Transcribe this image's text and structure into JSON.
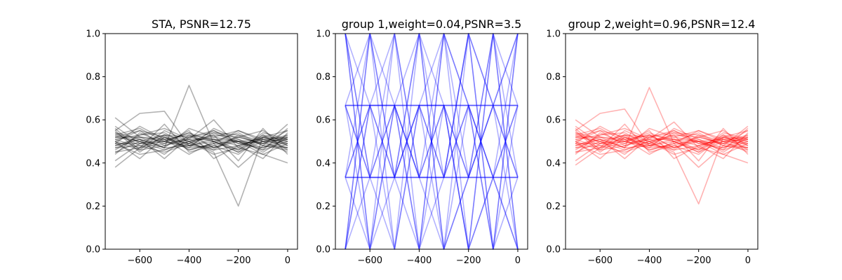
{
  "chart_data": [
    {
      "type": "line",
      "title": "STA, PSNR=12.75",
      "color": "#000000",
      "opacity": 0.3,
      "xlim": [
        -740,
        40
      ],
      "ylim": [
        0,
        1
      ],
      "xticks": [
        -600,
        -400,
        -200,
        0
      ],
      "xtick_labels": [
        "−600",
        "−400",
        "−200",
        "0"
      ],
      "yticks": [
        0,
        0.2,
        0.4,
        0.6,
        0.8,
        1.0
      ],
      "ytick_labels": [
        "0.0",
        "0.2",
        "0.4",
        "0.6",
        "0.8",
        "1.0"
      ],
      "x": [
        -700,
        -600,
        -500,
        -400,
        -300,
        -200,
        -100,
        0
      ],
      "series": [
        {
          "values": [
            0.61,
            0.52,
            0.5,
            0.54,
            0.47,
            0.5,
            0.49,
            0.52
          ]
        },
        {
          "values": [
            0.38,
            0.47,
            0.52,
            0.49,
            0.55,
            0.5,
            0.46,
            0.5
          ]
        },
        {
          "values": [
            0.55,
            0.63,
            0.64,
            0.48,
            0.51,
            0.46,
            0.52,
            0.49
          ]
        },
        {
          "values": [
            0.48,
            0.52,
            0.47,
            0.76,
            0.49,
            0.5,
            0.51,
            0.47
          ]
        },
        {
          "values": [
            0.5,
            0.46,
            0.55,
            0.5,
            0.45,
            0.2,
            0.52,
            0.51
          ]
        },
        {
          "values": [
            0.52,
            0.55,
            0.48,
            0.51,
            0.6,
            0.47,
            0.44,
            0.4
          ]
        },
        {
          "values": [
            0.45,
            0.5,
            0.53,
            0.46,
            0.49,
            0.38,
            0.48,
            0.58
          ]
        },
        {
          "values": [
            0.57,
            0.49,
            0.51,
            0.53,
            0.47,
            0.52,
            0.55,
            0.48
          ]
        },
        {
          "values": [
            0.49,
            0.44,
            0.46,
            0.5,
            0.52,
            0.55,
            0.5,
            0.53
          ]
        },
        {
          "values": [
            0.53,
            0.56,
            0.5,
            0.48,
            0.54,
            0.49,
            0.47,
            0.51
          ]
        },
        {
          "values": [
            0.47,
            0.51,
            0.42,
            0.52,
            0.5,
            0.45,
            0.53,
            0.46
          ]
        },
        {
          "values": [
            0.51,
            0.47,
            0.58,
            0.45,
            0.48,
            0.52,
            0.49,
            0.55
          ]
        },
        {
          "values": [
            0.44,
            0.54,
            0.49,
            0.55,
            0.42,
            0.48,
            0.51,
            0.5
          ]
        },
        {
          "values": [
            0.54,
            0.48,
            0.45,
            0.49,
            0.53,
            0.41,
            0.56,
            0.44
          ]
        },
        {
          "values": [
            0.5,
            0.42,
            0.52,
            0.47,
            0.56,
            0.51,
            0.45,
            0.52
          ]
        },
        {
          "values": [
            0.46,
            0.53,
            0.56,
            0.51,
            0.46,
            0.53,
            0.5,
            0.49
          ]
        },
        {
          "values": [
            0.52,
            0.5,
            0.44,
            0.53,
            0.51,
            0.48,
            0.42,
            0.54
          ]
        },
        {
          "values": [
            0.49,
            0.57,
            0.51,
            0.44,
            0.5,
            0.54,
            0.48,
            0.47
          ]
        },
        {
          "values": [
            0.55,
            0.45,
            0.53,
            0.5,
            0.44,
            0.47,
            0.53,
            0.5
          ]
        },
        {
          "values": [
            0.48,
            0.51,
            0.47,
            0.56,
            0.52,
            0.5,
            0.46,
            0.56
          ]
        },
        {
          "values": [
            0.41,
            0.49,
            0.5,
            0.47,
            0.48,
            0.44,
            0.52,
            0.48
          ]
        },
        {
          "values": [
            0.56,
            0.46,
            0.48,
            0.52,
            0.55,
            0.49,
            0.5,
            0.45
          ]
        },
        {
          "values": [
            0.51,
            0.53,
            0.54,
            0.48,
            0.47,
            0.51,
            0.47,
            0.53
          ]
        },
        {
          "values": [
            0.47,
            0.48,
            0.5,
            0.54,
            0.5,
            0.46,
            0.54,
            0.51
          ]
        },
        {
          "values": [
            0.53,
            0.5,
            0.46,
            0.5,
            0.53,
            0.52,
            0.49,
            0.47
          ]
        },
        {
          "values": [
            0.5,
            0.55,
            0.52,
            0.46,
            0.49,
            0.55,
            0.51,
            0.52
          ]
        },
        {
          "values": [
            0.45,
            0.47,
            0.49,
            0.51,
            0.51,
            0.5,
            0.44,
            0.49
          ]
        },
        {
          "values": [
            0.52,
            0.52,
            0.51,
            0.49,
            0.46,
            0.48,
            0.52,
            0.55
          ]
        },
        {
          "values": [
            0.49,
            0.49,
            0.53,
            0.52,
            0.54,
            0.53,
            0.48,
            0.46
          ]
        },
        {
          "values": [
            0.54,
            0.51,
            0.47,
            0.48,
            0.5,
            0.45,
            0.5,
            0.51
          ]
        }
      ]
    },
    {
      "type": "line",
      "title": "group 1,weight=0.04,PSNR=3.5",
      "color": "#0000ff",
      "opacity": 0.3,
      "xlim": [
        -740,
        40
      ],
      "ylim": [
        0,
        1
      ],
      "xticks": [
        -600,
        -400,
        -200,
        0
      ],
      "xtick_labels": [
        "−600",
        "−400",
        "−200",
        "0"
      ],
      "yticks": [
        0,
        0.2,
        0.4,
        0.6,
        0.8,
        1.0
      ],
      "ytick_labels": [
        "0.0",
        "0.2",
        "0.4",
        "0.6",
        "0.8",
        "1.0"
      ],
      "x": [
        -700,
        -600,
        -500,
        -400,
        -300,
        -200,
        -100,
        0
      ],
      "series": [
        {
          "values": [
            0.667,
            0.667,
            0.667,
            0.667,
            0.667,
            0.667,
            0.667,
            0.667
          ]
        },
        {
          "values": [
            0.667,
            0.667,
            0.667,
            0.667,
            0.667,
            0.667,
            0.667,
            0.667
          ]
        },
        {
          "values": [
            0.667,
            0.667,
            0.667,
            0.667,
            0.667,
            0.667,
            0.667,
            0.667
          ]
        },
        {
          "values": [
            0.333,
            0.333,
            0.333,
            0.333,
            0.333,
            0.333,
            0.333,
            0.333
          ]
        },
        {
          "values": [
            0.333,
            0.333,
            0.333,
            0.333,
            0.333,
            0.333,
            0.333,
            0.333
          ]
        },
        {
          "values": [
            0.333,
            0.333,
            0.333,
            0.333,
            0.333,
            0.333,
            0.333,
            0.333
          ]
        },
        {
          "values": [
            1.0,
            0.0,
            1.0,
            0.0,
            1.0,
            0.0,
            1.0,
            0.0
          ]
        },
        {
          "values": [
            0.0,
            1.0,
            0.0,
            1.0,
            0.0,
            1.0,
            0.0,
            1.0
          ]
        },
        {
          "values": [
            1.0,
            0.333,
            0.667,
            0.0,
            0.667,
            0.333,
            1.0,
            0.333
          ]
        },
        {
          "values": [
            0.0,
            0.667,
            0.333,
            1.0,
            0.333,
            0.667,
            0.0,
            0.667
          ]
        },
        {
          "values": [
            0.667,
            0.0,
            0.667,
            0.333,
            1.0,
            0.333,
            0.667,
            0.0
          ]
        },
        {
          "values": [
            0.333,
            1.0,
            0.333,
            0.667,
            0.0,
            0.667,
            0.333,
            1.0
          ]
        },
        {
          "values": [
            0.667,
            0.333,
            0.0,
            0.667,
            0.333,
            1.0,
            0.667,
            0.333
          ]
        },
        {
          "values": [
            0.333,
            0.667,
            1.0,
            0.333,
            0.667,
            0.0,
            0.333,
            0.667
          ]
        },
        {
          "values": [
            1.0,
            0.667,
            0.333,
            0.667,
            1.0,
            0.667,
            0.333,
            0.0
          ]
        },
        {
          "values": [
            0.0,
            0.333,
            0.667,
            0.333,
            0.0,
            0.333,
            0.667,
            1.0
          ]
        },
        {
          "values": [
            0.667,
            1.0,
            0.667,
            0.0,
            0.333,
            1.0,
            0.667,
            0.333
          ]
        },
        {
          "values": [
            0.333,
            0.0,
            0.333,
            1.0,
            0.667,
            0.0,
            0.333,
            0.667
          ]
        },
        {
          "values": [
            1.0,
            0.0,
            0.667,
            0.333,
            0.333,
            0.667,
            0.0,
            1.0
          ]
        },
        {
          "values": [
            0.0,
            1.0,
            0.333,
            0.667,
            0.667,
            0.333,
            1.0,
            0.0
          ]
        },
        {
          "values": [
            0.667,
            0.333,
            1.0,
            0.333,
            0.667,
            0.0,
            1.0,
            0.667
          ]
        },
        {
          "values": [
            0.333,
            0.667,
            0.0,
            0.667,
            0.333,
            1.0,
            0.0,
            0.333
          ]
        },
        {
          "values": [
            0.0,
            0.667,
            0.667,
            1.0,
            0.0,
            0.333,
            0.667,
            1.0
          ]
        },
        {
          "values": [
            1.0,
            0.333,
            0.333,
            0.0,
            1.0,
            0.667,
            0.333,
            0.0
          ]
        }
      ]
    },
    {
      "type": "line",
      "title": "group 2,weight=0.96,PSNR=12.4",
      "color": "#ff0000",
      "opacity": 0.3,
      "xlim": [
        -740,
        40
      ],
      "ylim": [
        0,
        1
      ],
      "xticks": [
        -600,
        -400,
        -200,
        0
      ],
      "xtick_labels": [
        "−600",
        "−400",
        "−200",
        "0"
      ],
      "yticks": [
        0,
        0.2,
        0.4,
        0.6,
        0.8,
        1.0
      ],
      "ytick_labels": [
        "0.0",
        "0.2",
        "0.4",
        "0.6",
        "0.8",
        "1.0"
      ],
      "x": [
        -700,
        -600,
        -500,
        -400,
        -300,
        -200,
        -100,
        0
      ],
      "series": [
        {
          "values": [
            0.6,
            0.52,
            0.5,
            0.53,
            0.47,
            0.5,
            0.49,
            0.52
          ]
        },
        {
          "values": [
            0.39,
            0.47,
            0.52,
            0.49,
            0.55,
            0.5,
            0.46,
            0.5
          ]
        },
        {
          "values": [
            0.55,
            0.63,
            0.65,
            0.48,
            0.51,
            0.46,
            0.52,
            0.49
          ]
        },
        {
          "values": [
            0.48,
            0.52,
            0.47,
            0.75,
            0.49,
            0.5,
            0.51,
            0.47
          ]
        },
        {
          "values": [
            0.5,
            0.46,
            0.55,
            0.5,
            0.45,
            0.21,
            0.52,
            0.51
          ]
        },
        {
          "values": [
            0.52,
            0.55,
            0.48,
            0.51,
            0.59,
            0.47,
            0.44,
            0.4
          ]
        },
        {
          "values": [
            0.45,
            0.5,
            0.53,
            0.46,
            0.49,
            0.38,
            0.48,
            0.57
          ]
        },
        {
          "values": [
            0.57,
            0.49,
            0.51,
            0.53,
            0.47,
            0.52,
            0.55,
            0.48
          ]
        },
        {
          "values": [
            0.49,
            0.44,
            0.46,
            0.5,
            0.52,
            0.55,
            0.5,
            0.53
          ]
        },
        {
          "values": [
            0.53,
            0.56,
            0.5,
            0.48,
            0.54,
            0.49,
            0.47,
            0.51
          ]
        },
        {
          "values": [
            0.47,
            0.51,
            0.42,
            0.52,
            0.5,
            0.45,
            0.53,
            0.46
          ]
        },
        {
          "values": [
            0.51,
            0.47,
            0.58,
            0.45,
            0.48,
            0.52,
            0.49,
            0.55
          ]
        },
        {
          "values": [
            0.44,
            0.54,
            0.49,
            0.55,
            0.42,
            0.48,
            0.51,
            0.5
          ]
        },
        {
          "values": [
            0.54,
            0.48,
            0.45,
            0.49,
            0.53,
            0.41,
            0.56,
            0.44
          ]
        },
        {
          "values": [
            0.5,
            0.42,
            0.52,
            0.47,
            0.56,
            0.51,
            0.45,
            0.52
          ]
        },
        {
          "values": [
            0.46,
            0.53,
            0.56,
            0.51,
            0.46,
            0.53,
            0.5,
            0.49
          ]
        },
        {
          "values": [
            0.52,
            0.5,
            0.44,
            0.53,
            0.51,
            0.48,
            0.42,
            0.54
          ]
        },
        {
          "values": [
            0.49,
            0.57,
            0.51,
            0.44,
            0.5,
            0.54,
            0.48,
            0.47
          ]
        },
        {
          "values": [
            0.55,
            0.45,
            0.53,
            0.5,
            0.44,
            0.47,
            0.53,
            0.5
          ]
        },
        {
          "values": [
            0.48,
            0.51,
            0.47,
            0.56,
            0.52,
            0.5,
            0.46,
            0.56
          ]
        },
        {
          "values": [
            0.41,
            0.49,
            0.5,
            0.47,
            0.48,
            0.44,
            0.52,
            0.48
          ]
        },
        {
          "values": [
            0.56,
            0.46,
            0.48,
            0.52,
            0.55,
            0.49,
            0.5,
            0.45
          ]
        },
        {
          "values": [
            0.51,
            0.53,
            0.54,
            0.48,
            0.47,
            0.51,
            0.47,
            0.53
          ]
        },
        {
          "values": [
            0.47,
            0.48,
            0.5,
            0.54,
            0.5,
            0.46,
            0.54,
            0.51
          ]
        },
        {
          "values": [
            0.53,
            0.5,
            0.46,
            0.5,
            0.53,
            0.52,
            0.49,
            0.47
          ]
        },
        {
          "values": [
            0.5,
            0.55,
            0.52,
            0.46,
            0.49,
            0.55,
            0.51,
            0.52
          ]
        },
        {
          "values": [
            0.45,
            0.47,
            0.49,
            0.51,
            0.51,
            0.5,
            0.44,
            0.49
          ]
        },
        {
          "values": [
            0.52,
            0.52,
            0.51,
            0.49,
            0.46,
            0.48,
            0.52,
            0.55
          ]
        },
        {
          "values": [
            0.49,
            0.49,
            0.53,
            0.52,
            0.54,
            0.53,
            0.48,
            0.46
          ]
        },
        {
          "values": [
            0.54,
            0.51,
            0.47,
            0.48,
            0.5,
            0.45,
            0.5,
            0.51
          ]
        }
      ]
    }
  ]
}
